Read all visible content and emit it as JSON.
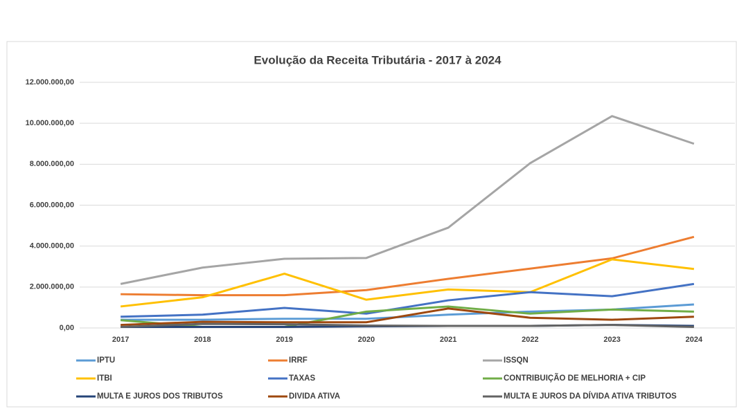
{
  "chart_data": {
    "type": "line",
    "title": "Evolução da Receita Tributária - 2017 à 2024",
    "categories": [
      "2017",
      "2018",
      "2019",
      "2020",
      "2021",
      "2022",
      "2023",
      "2024"
    ],
    "ylim": [
      0,
      12000000
    ],
    "yticks": [
      {
        "value": 0,
        "label": "0,00"
      },
      {
        "value": 2000000,
        "label": "2.000.000,00"
      },
      {
        "value": 4000000,
        "label": "4.000.000,00"
      },
      {
        "value": 6000000,
        "label": "6.000.000,00"
      },
      {
        "value": 8000000,
        "label": "8.000.000,00"
      },
      {
        "value": 10000000,
        "label": "10.000.000,00"
      },
      {
        "value": 12000000,
        "label": "12.000.000,00"
      }
    ],
    "grid": true,
    "legend": "bottom",
    "series": [
      {
        "name": "IPTU",
        "color": "#5b9bd5",
        "values": [
          400000,
          400000,
          450000,
          450000,
          650000,
          800000,
          900000,
          1150000
        ]
      },
      {
        "name": "IRRF",
        "color": "#ed7d31",
        "values": [
          1650000,
          1600000,
          1600000,
          1850000,
          2400000,
          2900000,
          3400000,
          4450000
        ]
      },
      {
        "name": "ISSQN",
        "color": "#a5a5a5",
        "values": [
          2150000,
          2950000,
          3380000,
          3420000,
          4900000,
          8050000,
          10350000,
          9000000
        ]
      },
      {
        "name": "ITBI",
        "color": "#ffc000",
        "values": [
          1050000,
          1500000,
          2650000,
          1380000,
          1880000,
          1750000,
          3350000,
          2880000
        ]
      },
      {
        "name": "TAXAS",
        "color": "#4472c4",
        "values": [
          550000,
          650000,
          980000,
          700000,
          1350000,
          1750000,
          1550000,
          2150000
        ]
      },
      {
        "name": "CONTRIBUIÇÃO DE MELHORIA + CIP",
        "color": "#70ad47",
        "values": [
          380000,
          50000,
          50000,
          800000,
          1050000,
          700000,
          900000,
          800000
        ]
      },
      {
        "name": "MULTA E JUROS DOS TRIBUTOS",
        "color": "#264478",
        "values": [
          50000,
          50000,
          50000,
          80000,
          100000,
          100000,
          150000,
          100000
        ]
      },
      {
        "name": "DIVIDA ATIVA",
        "color": "#9e480e",
        "values": [
          150000,
          300000,
          280000,
          280000,
          950000,
          500000,
          400000,
          550000
        ]
      },
      {
        "name": "MULTA E JUROS DA DÍVIDA ATIVA TRIBUTOS",
        "color": "#636363",
        "values": [
          50000,
          200000,
          180000,
          120000,
          100000,
          100000,
          150000,
          50000
        ]
      }
    ]
  }
}
